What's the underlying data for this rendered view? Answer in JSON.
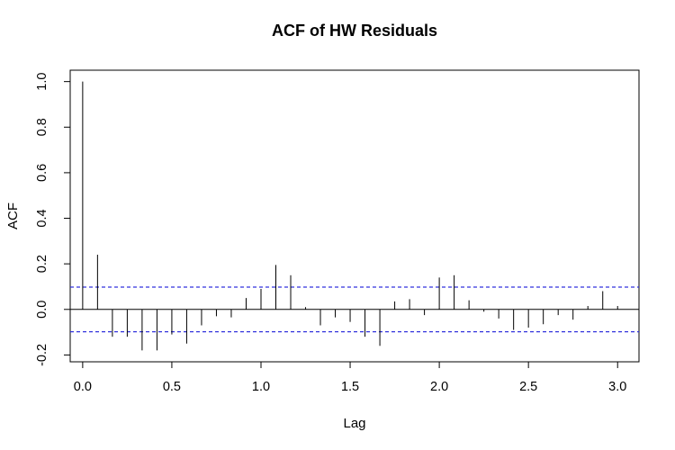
{
  "chart_data": {
    "type": "bar",
    "title": "ACF of HW Residuals",
    "xlabel": "Lag",
    "ylabel": "ACF",
    "xlim": [
      -0.07,
      3.12
    ],
    "ylim": [
      -0.23,
      1.05
    ],
    "x_ticks": [
      "0.0",
      "0.5",
      "1.0",
      "1.5",
      "2.0",
      "2.5",
      "3.0"
    ],
    "y_ticks": [
      "-0.2",
      "0.0",
      "0.2",
      "0.4",
      "0.6",
      "0.8",
      "1.0"
    ],
    "confidence_bound": 0.098,
    "ci_color": "#3333dd",
    "lags": [
      0.0,
      0.0833,
      0.1667,
      0.25,
      0.3333,
      0.4167,
      0.5,
      0.5833,
      0.6667,
      0.75,
      0.8333,
      0.9167,
      1.0,
      1.0833,
      1.1667,
      1.25,
      1.3333,
      1.4167,
      1.5,
      1.5833,
      1.6667,
      1.75,
      1.8333,
      1.9167,
      2.0,
      2.0833,
      2.1667,
      2.25,
      2.3333,
      2.4167,
      2.5,
      2.5833,
      2.6667,
      2.75,
      2.8333,
      2.9167,
      3.0
    ],
    "values": [
      1.0,
      0.24,
      -0.12,
      -0.12,
      -0.18,
      -0.18,
      -0.11,
      -0.15,
      -0.07,
      -0.03,
      -0.035,
      0.05,
      0.09,
      0.195,
      0.15,
      0.01,
      -0.07,
      -0.035,
      -0.055,
      -0.12,
      -0.16,
      0.035,
      0.045,
      -0.025,
      0.14,
      0.15,
      0.04,
      -0.01,
      -0.04,
      -0.09,
      -0.08,
      -0.065,
      -0.025,
      -0.045,
      0.015,
      0.08,
      0.015
    ]
  }
}
